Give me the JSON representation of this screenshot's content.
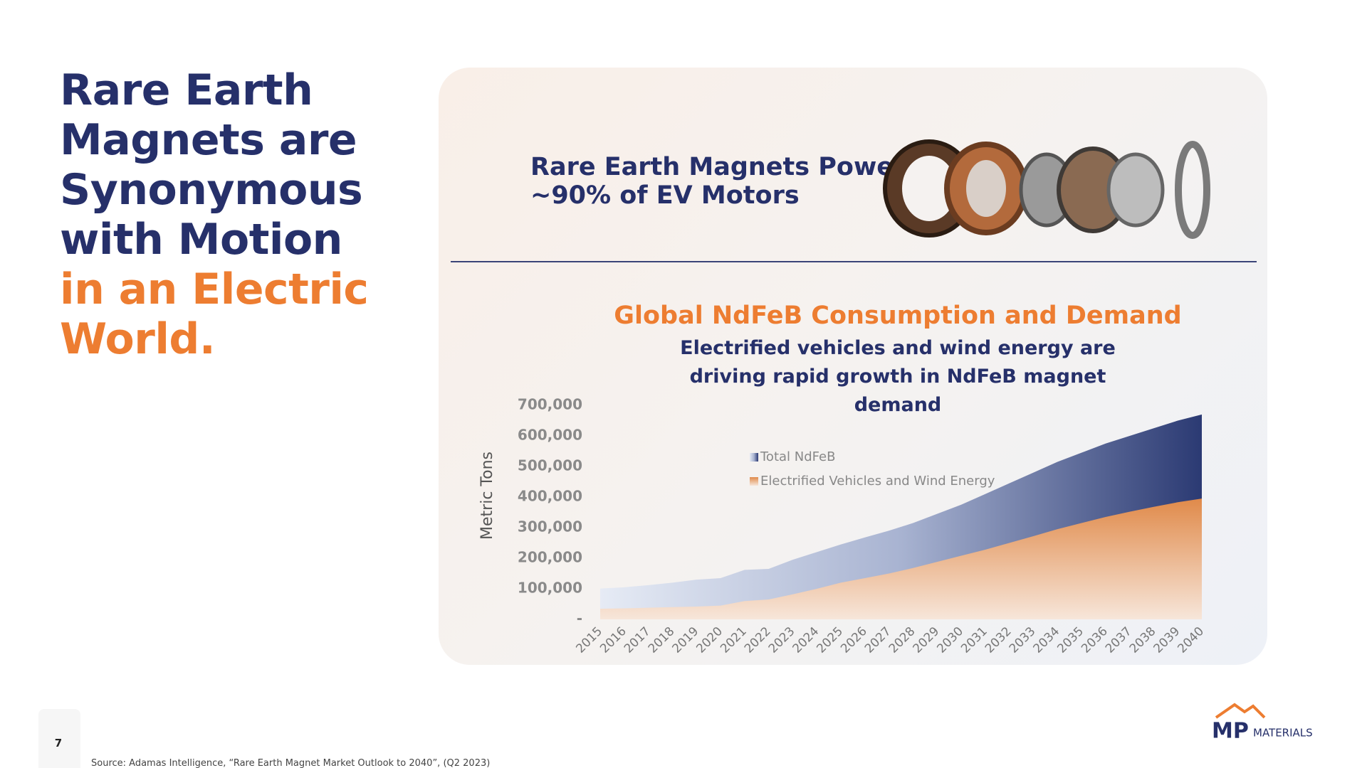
{
  "slide": {
    "title": {
      "primary_lines": [
        "Rare Earth",
        "Magnets are",
        "Synonymous",
        "with Motion"
      ],
      "accent_lines": [
        "in an Electric",
        "World."
      ]
    },
    "headline_lines": [
      "Rare Earth Magnets Power",
      "~90% of EV Motors"
    ],
    "page_number": "7",
    "source": "Source: Adamas Intelligence, “Rare Earth Magnet Market Outlook to 2040”, (Q2 2023)",
    "logo": {
      "mark": "MP",
      "word": "MATERIALS"
    }
  },
  "chart_data": {
    "type": "area",
    "title": "Global NdFeB Consumption and Demand",
    "subtitle": "Electrified vehicles and wind energy are driving rapid growth in NdFeB magnet demand",
    "y_label": "Metric Tons",
    "categories": [
      "2015",
      "2016",
      "2017",
      "2018",
      "2019",
      "2020",
      "2021",
      "2022",
      "2023",
      "2024",
      "2025",
      "2026",
      "2027",
      "2028",
      "2029",
      "2030",
      "2031",
      "2032",
      "2033",
      "2034",
      "2035",
      "2036",
      "2037",
      "2038",
      "2039",
      "2040"
    ],
    "series": [
      {
        "name": "Total NdFeB",
        "color": "#2b3a73",
        "values": [
          101000,
          105000,
          112000,
          120000,
          130000,
          135000,
          162000,
          165000,
          195000,
          220000,
          245000,
          268000,
          290000,
          315000,
          345000,
          375000,
          410000,
          445000,
          480000,
          515000,
          545000,
          575000,
          600000,
          625000,
          650000,
          670000
        ]
      },
      {
        "name": "Electrified Vehicles and Wind Energy",
        "color": "#e08a4a",
        "values": [
          35000,
          36000,
          38000,
          40000,
          42000,
          45000,
          60000,
          65000,
          82000,
          100000,
          120000,
          135000,
          150000,
          168000,
          188000,
          208000,
          228000,
          250000,
          272000,
          295000,
          315000,
          335000,
          352000,
          368000,
          383000,
          395000
        ]
      }
    ],
    "ylim": [
      0,
      700000
    ],
    "yticks": [
      {
        "value": 0,
        "label": "-"
      },
      {
        "value": 100000,
        "label": "100,000"
      },
      {
        "value": 200000,
        "label": "200,000"
      },
      {
        "value": 300000,
        "label": "300,000"
      },
      {
        "value": 400000,
        "label": "400,000"
      },
      {
        "value": 500000,
        "label": "500,000"
      },
      {
        "value": 600000,
        "label": "600,000"
      },
      {
        "value": 700000,
        "label": "700,000"
      }
    ],
    "grid": false
  }
}
